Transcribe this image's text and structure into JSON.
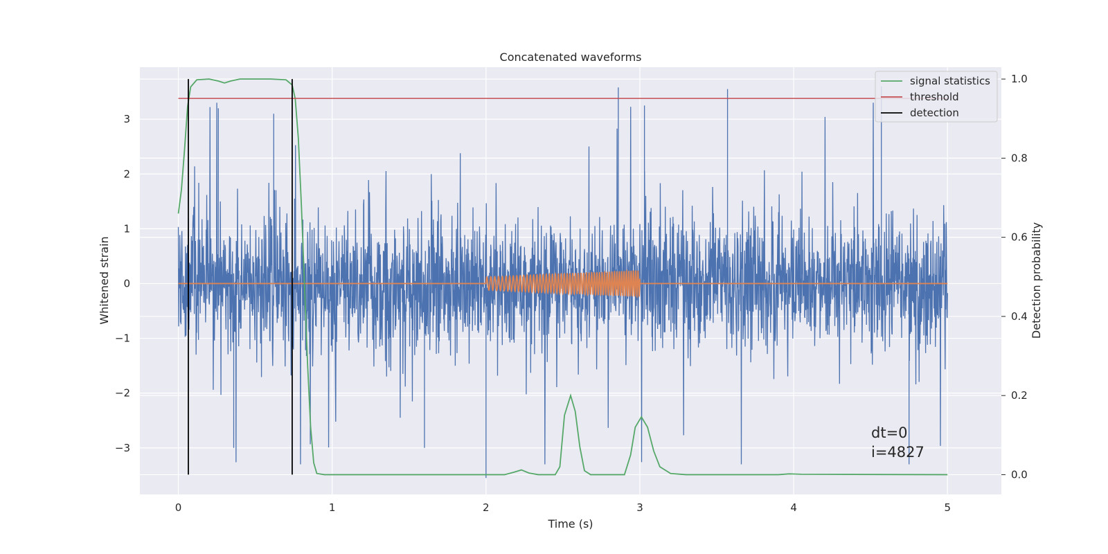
{
  "chart_data": {
    "type": "line",
    "title": "Concatenated waveforms",
    "xlabel": "Time (s)",
    "ylabel_left": "Whitened strain",
    "ylabel_right": "Detection probability",
    "xlim": [
      -0.25,
      5.35
    ],
    "ylim_left": [
      -3.85,
      3.95
    ],
    "ylim_right": [
      -0.05,
      1.03
    ],
    "x_ticks": [
      0,
      1,
      2,
      3,
      4,
      5
    ],
    "y_ticks_left": [
      -3,
      -2,
      -1,
      0,
      1,
      2,
      3
    ],
    "y_ticks_right": [
      0.0,
      0.2,
      0.4,
      0.6,
      0.8,
      1.0
    ],
    "grid": true,
    "legend_position": "top-right",
    "legend": [
      {
        "label": "signal statistics",
        "color": "#55a868"
      },
      {
        "label": "threshold",
        "color": "#c44e52"
      },
      {
        "label": "detection",
        "color": "#000000"
      }
    ],
    "series": [
      {
        "name": "whitened strain (noise)",
        "axis": "left",
        "color": "#4c72b0",
        "x_range": [
          0,
          5
        ],
        "envelope_typical": 1.6,
        "notable_spikes": [
          {
            "x": 0.26,
            "y": 3.2
          },
          {
            "x": 0.62,
            "y": 3.1
          },
          {
            "x": 2.86,
            "y": 3.58
          },
          {
            "x": 3.03,
            "y": 3.25
          },
          {
            "x": 3.57,
            "y": 3.55
          },
          {
            "x": 4.57,
            "y": 3.6
          },
          {
            "x": 2.0,
            "y": -3.55
          },
          {
            "x": 1.6,
            "y": -3.0
          },
          {
            "x": 4.75,
            "y": -3.3
          },
          {
            "x": 0.36,
            "y": -3.0
          }
        ]
      },
      {
        "name": "injected waveform",
        "axis": "left",
        "color": "#dd8452",
        "x_range": [
          0,
          5
        ],
        "chirp_start": 2.0,
        "chirp_end": 3.0,
        "amp_start": 0.12,
        "amp_end": 0.24
      },
      {
        "name": "signal statistics",
        "axis": "right",
        "color": "#55a868",
        "points": [
          [
            0.0,
            0.66
          ],
          [
            0.02,
            0.72
          ],
          [
            0.04,
            0.82
          ],
          [
            0.06,
            0.93
          ],
          [
            0.08,
            0.98
          ],
          [
            0.12,
            0.998
          ],
          [
            0.2,
            1.0
          ],
          [
            0.26,
            0.995
          ],
          [
            0.3,
            0.99
          ],
          [
            0.34,
            0.995
          ],
          [
            0.4,
            1.0
          ],
          [
            0.6,
            1.0
          ],
          [
            0.7,
            0.998
          ],
          [
            0.74,
            0.985
          ],
          [
            0.76,
            0.95
          ],
          [
            0.78,
            0.85
          ],
          [
            0.8,
            0.68
          ],
          [
            0.82,
            0.48
          ],
          [
            0.84,
            0.28
          ],
          [
            0.86,
            0.12
          ],
          [
            0.88,
            0.03
          ],
          [
            0.9,
            0.003
          ],
          [
            0.95,
            0.0
          ],
          [
            2.12,
            0.0
          ],
          [
            2.18,
            0.006
          ],
          [
            2.23,
            0.012
          ],
          [
            2.28,
            0.004
          ],
          [
            2.34,
            0.0
          ],
          [
            2.45,
            0.0
          ],
          [
            2.48,
            0.02
          ],
          [
            2.51,
            0.15
          ],
          [
            2.55,
            0.2
          ],
          [
            2.58,
            0.16
          ],
          [
            2.61,
            0.07
          ],
          [
            2.64,
            0.01
          ],
          [
            2.68,
            0.0
          ],
          [
            2.9,
            0.0
          ],
          [
            2.94,
            0.05
          ],
          [
            2.97,
            0.12
          ],
          [
            3.01,
            0.146
          ],
          [
            3.05,
            0.12
          ],
          [
            3.09,
            0.06
          ],
          [
            3.13,
            0.02
          ],
          [
            3.2,
            0.003
          ],
          [
            3.3,
            0.0
          ],
          [
            3.9,
            0.0
          ],
          [
            3.97,
            0.002
          ],
          [
            4.05,
            0.001
          ],
          [
            5.0,
            0.0
          ]
        ]
      },
      {
        "name": "threshold",
        "axis": "right",
        "color": "#c44e52",
        "value": 0.951,
        "x_range": [
          0,
          5
        ]
      },
      {
        "name": "detection",
        "axis": "right",
        "color": "#000000",
        "x_positions": [
          0.065,
          0.74
        ],
        "y_range": [
          0.0,
          1.0
        ]
      }
    ],
    "annotations": [
      {
        "text": "dt=0"
      },
      {
        "text": "i=4827"
      }
    ]
  }
}
